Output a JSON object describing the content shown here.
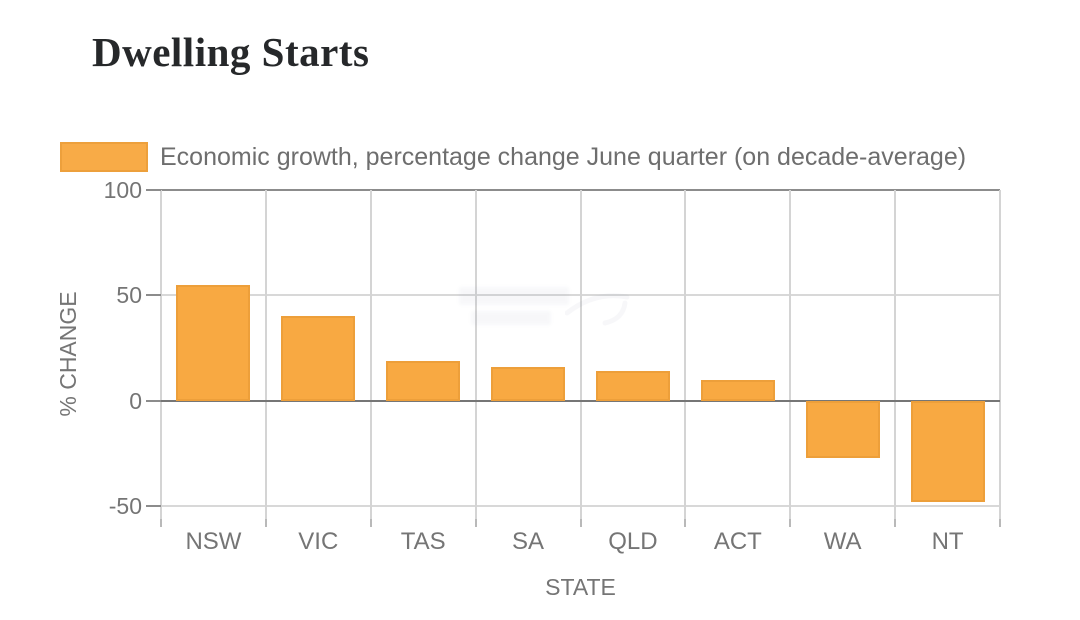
{
  "header": {
    "title": "Dwelling Starts"
  },
  "legend": {
    "label": "Economic growth, percentage change June quarter (on decade-average)"
  },
  "chart_data": {
    "type": "bar",
    "title": "Dwelling Starts",
    "categories": [
      "NSW",
      "VIC",
      "TAS",
      "SA",
      "QLD",
      "ACT",
      "WA",
      "NT"
    ],
    "values": [
      55,
      40,
      19,
      16,
      14,
      10,
      -27,
      -48
    ],
    "series": [
      {
        "name": "Economic growth, percentage change June quarter (on decade-average)",
        "values": [
          55,
          40,
          19,
          16,
          14,
          10,
          -27,
          -48
        ]
      }
    ],
    "xlabel": "STATE",
    "ylabel": "% CHANGE",
    "yticks": [
      100,
      50,
      0,
      -50
    ],
    "ylim": [
      -56,
      100
    ],
    "grid": true,
    "legend_position": "top-left",
    "colors": {
      "bar_fill": "#f8a942",
      "bar_border": "#ed9f3a",
      "gridline": "#d8d8d8",
      "zero_line": "#767676",
      "axis_text": "#757575",
      "title_text": "#26282a",
      "legend_text": "#6e6e6e"
    }
  }
}
